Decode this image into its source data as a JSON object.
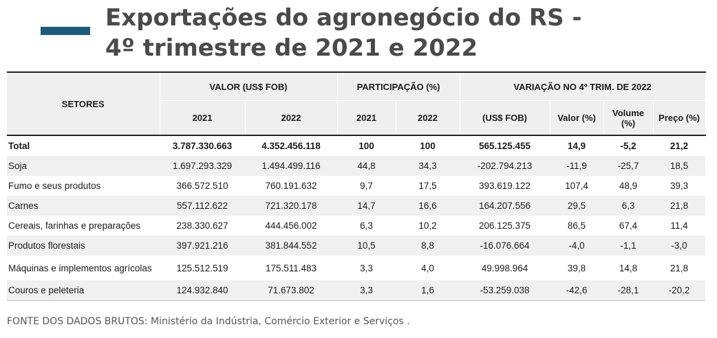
{
  "title": {
    "line1": "Exportações do agronegócio do RS -",
    "line2": "4º trimestre de 2021 e 2022"
  },
  "table": {
    "header": {
      "setores": "SETORES",
      "valor": "VALOR (US$ FOB)",
      "participacao": "PARTICIPAÇÃO (%)",
      "variacao": "VARIAÇÃO NO 4º TRIM. DE 2022",
      "y2021_a": "2021",
      "y2022_a": "2022",
      "y2021_b": "2021",
      "y2022_b": "2022",
      "us_fob": "(US$ FOB)",
      "valor_pct": "Valor (%)",
      "volume_pct": "Volume (%)",
      "preco_pct": "Preço (%)"
    },
    "rows": [
      [
        "Total",
        "3.787.330.663",
        "4.352.456.118",
        "100",
        "100",
        "565.125.455",
        "14,9",
        "-5,2",
        "21,2"
      ],
      [
        "Soja",
        "1.697.293.329",
        "1.494.499.116",
        "44,8",
        "34,3",
        "-202.794.213",
        "-11,9",
        "-25,7",
        "18,5"
      ],
      [
        "Fumo e seus produtos",
        "366.572.510",
        "760.191.632",
        "9,7",
        "17,5",
        "393.619.122",
        "107,4",
        "48,9",
        "39,3"
      ],
      [
        "Carnes",
        "557.112.622",
        "721.320.178",
        "14,7",
        "16,6",
        "164.207.556",
        "29,5",
        "6,3",
        "21,8"
      ],
      [
        "Cereais, farinhas e preparações",
        "238.330.627",
        "444.456.002",
        "6,3",
        "10,2",
        "206.125.375",
        "86,5",
        "67,4",
        "11,4"
      ],
      [
        "Produtos florestais",
        "397.921.216",
        "381.844.552",
        "10,5",
        "8,8",
        "-16.076.664",
        "-4,0",
        "-1,1",
        "-3,0"
      ],
      [
        "Máquinas e implementos agrícolas",
        "125.512.519",
        "175.511.483",
        "3,3",
        "4,0",
        "49.998.964",
        "39,8",
        "14,8",
        "21,8"
      ],
      [
        "Couros e peleteria",
        "124.932.840",
        "71.673.802",
        "3,3",
        "1,6",
        "-53.259.038",
        "-42,6",
        "-28,1",
        "-20,2"
      ]
    ]
  },
  "footer": "FONTE DOS DADOS BRUTOS: Ministério da Indústria, Comércio Exterior e Serviços ."
}
